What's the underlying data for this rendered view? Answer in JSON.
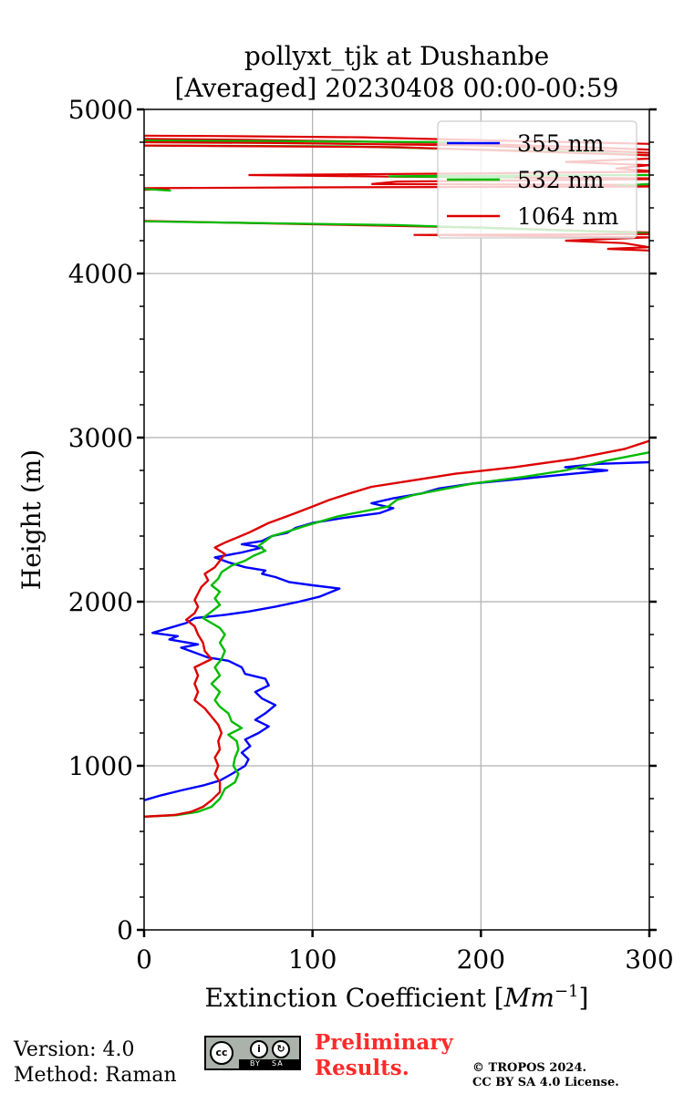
{
  "chart_data": {
    "type": "line",
    "title": "pollyxt_tjk at Dushanbe",
    "subtitle": "[Averaged] 20230408 00:00-00:59",
    "xlabel": "Extinction Coefficient [",
    "xlabel_unit": "Mm",
    "xlabel_exp": "−1",
    "xlabel_close": "]",
    "ylabel": "Height (m)",
    "xlim": [
      0,
      300
    ],
    "ylim": [
      0,
      5000
    ],
    "grid": true,
    "legend_position": "top-right",
    "x_ticks": [
      0,
      100,
      200,
      300
    ],
    "x_tick_labels": [
      "0",
      "100",
      "200",
      "300"
    ],
    "y_ticks": [
      0,
      1000,
      2000,
      3000,
      4000,
      5000
    ],
    "y_tick_labels": [
      "0",
      "1000",
      "2000",
      "3000",
      "4000",
      "5000"
    ],
    "series": [
      {
        "name": "355 nm",
        "color": "#0000ff",
        "points": [
          [
            0,
            790
          ],
          [
            10,
            820
          ],
          [
            22,
            850
          ],
          [
            35,
            880
          ],
          [
            45,
            910
          ],
          [
            52,
            950
          ],
          [
            60,
            1000
          ],
          [
            62,
            1040
          ],
          [
            58,
            1080
          ],
          [
            63,
            1120
          ],
          [
            60,
            1160
          ],
          [
            68,
            1200
          ],
          [
            74,
            1240
          ],
          [
            66,
            1280
          ],
          [
            72,
            1320
          ],
          [
            78,
            1370
          ],
          [
            70,
            1410
          ],
          [
            66,
            1450
          ],
          [
            74,
            1490
          ],
          [
            72,
            1530
          ],
          [
            60,
            1560
          ],
          [
            58,
            1600
          ],
          [
            50,
            1640
          ],
          [
            38,
            1660
          ],
          [
            30,
            1690
          ],
          [
            22,
            1720
          ],
          [
            32,
            1740
          ],
          [
            15,
            1770
          ],
          [
            20,
            1790
          ],
          [
            5,
            1810
          ],
          [
            15,
            1840
          ],
          [
            25,
            1870
          ],
          [
            30,
            1900
          ],
          [
            48,
            1920
          ],
          [
            62,
            1940
          ],
          [
            78,
            1970
          ],
          [
            92,
            2000
          ],
          [
            104,
            2030
          ],
          [
            116,
            2080
          ],
          [
            100,
            2100
          ],
          [
            86,
            2120
          ],
          [
            78,
            2150
          ],
          [
            70,
            2170
          ],
          [
            72,
            2190
          ],
          [
            60,
            2210
          ],
          [
            50,
            2240
          ],
          [
            42,
            2270
          ],
          [
            58,
            2300
          ],
          [
            70,
            2330
          ],
          [
            58,
            2350
          ],
          [
            70,
            2370
          ],
          [
            76,
            2400
          ],
          [
            85,
            2420
          ],
          [
            90,
            2450
          ],
          [
            100,
            2480
          ],
          [
            118,
            2510
          ],
          [
            140,
            2540
          ],
          [
            148,
            2570
          ],
          [
            135,
            2600
          ],
          [
            148,
            2630
          ],
          [
            165,
            2660
          ],
          [
            175,
            2690
          ],
          [
            195,
            2720
          ],
          [
            225,
            2750
          ],
          [
            255,
            2780
          ],
          [
            275,
            2800
          ],
          [
            250,
            2820
          ],
          [
            270,
            2840
          ],
          [
            300,
            2850
          ]
        ]
      },
      {
        "name": "532 nm",
        "color": "#00bb00",
        "points": [
          [
            0,
            690
          ],
          [
            20,
            700
          ],
          [
            32,
            720
          ],
          [
            40,
            750
          ],
          [
            45,
            800
          ],
          [
            48,
            860
          ],
          [
            54,
            900
          ],
          [
            56,
            950
          ],
          [
            53,
            1000
          ],
          [
            54,
            1050
          ],
          [
            56,
            1100
          ],
          [
            55,
            1150
          ],
          [
            50,
            1190
          ],
          [
            58,
            1230
          ],
          [
            52,
            1270
          ],
          [
            50,
            1320
          ],
          [
            45,
            1360
          ],
          [
            42,
            1400
          ],
          [
            45,
            1450
          ],
          [
            40,
            1500
          ],
          [
            45,
            1550
          ],
          [
            42,
            1600
          ],
          [
            46,
            1650
          ],
          [
            48,
            1700
          ],
          [
            45,
            1750
          ],
          [
            48,
            1800
          ],
          [
            45,
            1840
          ],
          [
            40,
            1870
          ],
          [
            35,
            1900
          ],
          [
            40,
            1940
          ],
          [
            45,
            1980
          ],
          [
            42,
            2020
          ],
          [
            45,
            2060
          ],
          [
            40,
            2100
          ],
          [
            44,
            2140
          ],
          [
            46,
            2180
          ],
          [
            52,
            2220
          ],
          [
            60,
            2250
          ],
          [
            65,
            2280
          ],
          [
            72,
            2310
          ],
          [
            68,
            2340
          ],
          [
            72,
            2370
          ],
          [
            76,
            2400
          ],
          [
            86,
            2430
          ],
          [
            95,
            2460
          ],
          [
            105,
            2490
          ],
          [
            115,
            2520
          ],
          [
            130,
            2550
          ],
          [
            145,
            2580
          ],
          [
            150,
            2620
          ],
          [
            160,
            2650
          ],
          [
            175,
            2680
          ],
          [
            195,
            2720
          ],
          [
            225,
            2760
          ],
          [
            250,
            2800
          ],
          [
            275,
            2860
          ],
          [
            300,
            2910
          ]
        ]
      },
      {
        "name": "1064 nm",
        "color": "#dd0000",
        "points": [
          [
            0,
            690
          ],
          [
            18,
            700
          ],
          [
            28,
            720
          ],
          [
            35,
            750
          ],
          [
            40,
            790
          ],
          [
            45,
            840
          ],
          [
            45,
            900
          ],
          [
            42,
            950
          ],
          [
            44,
            1000
          ],
          [
            42,
            1050
          ],
          [
            45,
            1100
          ],
          [
            44,
            1150
          ],
          [
            46,
            1200
          ],
          [
            44,
            1250
          ],
          [
            40,
            1300
          ],
          [
            36,
            1350
          ],
          [
            30,
            1400
          ],
          [
            32,
            1450
          ],
          [
            30,
            1500
          ],
          [
            32,
            1550
          ],
          [
            30,
            1600
          ],
          [
            40,
            1650
          ],
          [
            36,
            1700
          ],
          [
            35,
            1750
          ],
          [
            32,
            1800
          ],
          [
            30,
            1850
          ],
          [
            25,
            1890
          ],
          [
            30,
            1930
          ],
          [
            32,
            1970
          ],
          [
            30,
            2010
          ],
          [
            32,
            2050
          ],
          [
            34,
            2090
          ],
          [
            38,
            2130
          ],
          [
            36,
            2170
          ],
          [
            42,
            2210
          ],
          [
            45,
            2250
          ],
          [
            48,
            2290
          ],
          [
            42,
            2330
          ],
          [
            48,
            2360
          ],
          [
            55,
            2390
          ],
          [
            62,
            2420
          ],
          [
            68,
            2450
          ],
          [
            74,
            2480
          ],
          [
            82,
            2510
          ],
          [
            90,
            2540
          ],
          [
            100,
            2580
          ],
          [
            110,
            2620
          ],
          [
            122,
            2660
          ],
          [
            135,
            2700
          ],
          [
            160,
            2740
          ],
          [
            185,
            2780
          ],
          [
            220,
            2820
          ],
          [
            255,
            2870
          ],
          [
            285,
            2930
          ],
          [
            300,
            2980
          ]
        ]
      }
    ],
    "upper_band_lines": [
      {
        "series": "1064 nm",
        "points": [
          [
            0,
            4840
          ],
          [
            40,
            4838
          ],
          [
            130,
            4830
          ],
          [
            210,
            4810
          ],
          [
            300,
            4790
          ]
        ]
      },
      {
        "series": "1064 nm",
        "points": [
          [
            0,
            4820
          ],
          [
            60,
            4815
          ],
          [
            180,
            4795
          ],
          [
            260,
            4770
          ],
          [
            300,
            4755
          ]
        ]
      },
      {
        "series": "532 nm",
        "points": [
          [
            0,
            4810
          ],
          [
            100,
            4805
          ],
          [
            190,
            4800
          ]
        ]
      },
      {
        "series": "1064 nm",
        "points": [
          [
            0,
            4800
          ],
          [
            80,
            4795
          ],
          [
            200,
            4780
          ],
          [
            300,
            4735
          ]
        ]
      },
      {
        "series": "532 nm",
        "points": [
          [
            0,
            4780
          ],
          [
            120,
            4775
          ],
          [
            260,
            4740
          ],
          [
            300,
            4720
          ]
        ]
      },
      {
        "series": "1064 nm",
        "points": [
          [
            0,
            4780
          ],
          [
            150,
            4770
          ],
          [
            300,
            4720
          ]
        ]
      },
      {
        "series": "1064 nm",
        "points": [
          [
            300,
            4700
          ],
          [
            250,
            4680
          ],
          [
            300,
            4660
          ],
          [
            280,
            4640
          ],
          [
            300,
            4625
          ]
        ]
      },
      {
        "series": "1064 nm",
        "points": [
          [
            300,
            4620
          ],
          [
            200,
            4610
          ],
          [
            62,
            4600
          ],
          [
            150,
            4590
          ],
          [
            300,
            4580
          ]
        ]
      },
      {
        "series": "532 nm",
        "points": [
          [
            300,
            4600
          ],
          [
            180,
            4595
          ],
          [
            145,
            4592
          ],
          [
            220,
            4585
          ]
        ]
      },
      {
        "series": "1064 nm",
        "points": [
          [
            300,
            4575
          ],
          [
            150,
            4560
          ],
          [
            135,
            4545
          ],
          [
            300,
            4540
          ]
        ]
      },
      {
        "series": "532 nm",
        "points": [
          [
            300,
            4545
          ],
          [
            280,
            4535
          ]
        ]
      },
      {
        "series": "1064 nm",
        "points": [
          [
            300,
            4530
          ],
          [
            100,
            4525
          ],
          [
            0,
            4520
          ],
          [
            15,
            4515
          ],
          [
            0,
            4510
          ]
        ]
      },
      {
        "series": "532 nm",
        "points": [
          [
            0,
            4515
          ],
          [
            16,
            4505
          ]
        ]
      },
      {
        "series": "1064 nm",
        "points": [
          [
            0,
            4320
          ],
          [
            100,
            4300
          ],
          [
            200,
            4280
          ],
          [
            260,
            4260
          ],
          [
            300,
            4250
          ]
        ]
      },
      {
        "series": "532 nm",
        "points": [
          [
            0,
            4318
          ],
          [
            150,
            4295
          ],
          [
            240,
            4265
          ],
          [
            300,
            4245
          ]
        ]
      },
      {
        "series": "1064 nm",
        "points": [
          [
            300,
            4240
          ],
          [
            160,
            4235
          ],
          [
            300,
            4220
          ],
          [
            250,
            4200
          ],
          [
            285,
            4185
          ],
          [
            300,
            4160
          ],
          [
            275,
            4150
          ],
          [
            300,
            4140
          ]
        ]
      }
    ]
  },
  "footer": {
    "version": "Version: 4.0",
    "method": "Method: Raman",
    "preliminary_line1": "Preliminary",
    "preliminary_line2": "Results.",
    "copyright_line1": "© TROPOS 2024.",
    "copyright_line2": "CC BY SA 4.0 License.",
    "cc_badge_text": "cc",
    "cc_by": "BY",
    "cc_sa": "SA"
  }
}
